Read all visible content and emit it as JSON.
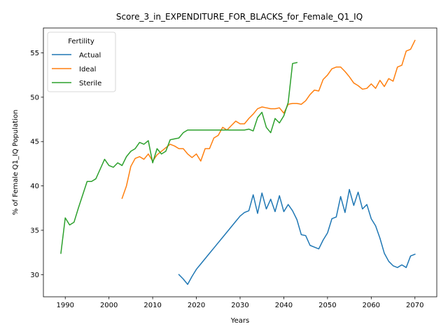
{
  "chart_data": {
    "type": "line",
    "title": "Score_3_in_EXPENDITURE_FOR_BLACKS_for_Female_Q1_IQ",
    "xlabel": "Years",
    "ylabel": "% of Female Q1_IQ Population",
    "xlim": [
      1985,
      2075
    ],
    "ylim": [
      27.5,
      57.8
    ],
    "xticks": [
      1990,
      2000,
      2010,
      2020,
      2030,
      2040,
      2050,
      2060,
      2070
    ],
    "yticks": [
      30,
      35,
      40,
      45,
      50,
      55
    ],
    "grid": false,
    "legend": {
      "title": "Fertility",
      "placement": "top-left"
    },
    "series": [
      {
        "name": "Actual",
        "color": "#1f77b4",
        "x": [
          2016,
          2017,
          2018,
          2019,
          2020,
          2021,
          2022,
          2023,
          2024,
          2025,
          2026,
          2027,
          2028,
          2029,
          2030,
          2031,
          2032,
          2033,
          2034,
          2035,
          2036,
          2037,
          2038,
          2039,
          2040,
          2041,
          2042,
          2043,
          2044,
          2045,
          2046,
          2047,
          2048,
          2049,
          2050,
          2051,
          2052,
          2053,
          2054,
          2055,
          2056,
          2057,
          2058,
          2059,
          2060,
          2061,
          2062,
          2063,
          2064,
          2065,
          2066,
          2067,
          2068,
          2069,
          2070
        ],
        "y": [
          30.0,
          29.5,
          28.9,
          29.8,
          30.6,
          31.2,
          31.8,
          32.4,
          33.0,
          33.6,
          34.2,
          34.8,
          35.4,
          36.0,
          36.6,
          37.0,
          37.2,
          39.0,
          36.9,
          39.2,
          37.4,
          38.5,
          37.1,
          38.9,
          37.1,
          37.9,
          37.2,
          36.2,
          34.5,
          34.4,
          33.3,
          33.1,
          32.9,
          33.9,
          34.7,
          36.3,
          36.5,
          38.8,
          37.0,
          39.6,
          37.8,
          39.3,
          37.4,
          37.9,
          36.3,
          35.5,
          34.1,
          32.4,
          31.5,
          31.0,
          30.8,
          31.1,
          30.8,
          32.1,
          32.3
        ]
      },
      {
        "name": "Ideal",
        "color": "#ff7f0e",
        "x": [
          2003,
          2004,
          2005,
          2006,
          2007,
          2008,
          2009,
          2010,
          2011,
          2012,
          2013,
          2014,
          2015,
          2016,
          2017,
          2018,
          2019,
          2020,
          2021,
          2022,
          2023,
          2024,
          2025,
          2026,
          2027,
          2028,
          2029,
          2030,
          2031,
          2032,
          2033,
          2034,
          2035,
          2036,
          2037,
          2038,
          2039,
          2040,
          2041,
          2042,
          2043,
          2044,
          2045,
          2046,
          2047,
          2048,
          2049,
          2050,
          2051,
          2052,
          2053,
          2054,
          2055,
          2056,
          2057,
          2058,
          2059,
          2060,
          2061,
          2062,
          2063,
          2064,
          2065,
          2066,
          2067,
          2068,
          2069,
          2070
        ],
        "y": [
          38.6,
          40.0,
          42.2,
          43.1,
          43.3,
          43.0,
          43.6,
          42.8,
          43.5,
          43.9,
          44.3,
          44.7,
          44.5,
          44.2,
          44.2,
          43.6,
          43.2,
          43.6,
          42.8,
          44.2,
          44.2,
          45.4,
          45.7,
          46.6,
          46.3,
          46.8,
          47.3,
          47.0,
          47.0,
          47.6,
          48.1,
          48.7,
          48.9,
          48.8,
          48.7,
          48.7,
          48.8,
          48.2,
          49.2,
          49.3,
          49.3,
          49.2,
          49.6,
          50.3,
          50.8,
          50.7,
          52.0,
          52.5,
          53.2,
          53.4,
          53.4,
          52.9,
          52.3,
          51.6,
          51.3,
          50.9,
          51.0,
          51.5,
          51.0,
          51.9,
          51.2,
          52.1,
          51.8,
          53.4,
          53.6,
          55.2,
          55.4,
          56.4
        ]
      },
      {
        "name": "Sterile",
        "color": "#2ca02c",
        "x": [
          1989,
          1990,
          1991,
          1992,
          1993,
          1994,
          1995,
          1996,
          1997,
          1998,
          1999,
          2000,
          2001,
          2002,
          2003,
          2004,
          2005,
          2006,
          2007,
          2008,
          2009,
          2010,
          2011,
          2012,
          2013,
          2014,
          2015,
          2016,
          2017,
          2018,
          2019,
          2020,
          2021,
          2022,
          2023,
          2024,
          2025,
          2026,
          2027,
          2028,
          2029,
          2030,
          2031,
          2032,
          2033,
          2034,
          2035,
          2036,
          2037,
          2038,
          2039,
          2040,
          2041,
          2042,
          2043
        ],
        "y": [
          32.4,
          36.4,
          35.6,
          35.9,
          37.5,
          39.0,
          40.5,
          40.5,
          40.8,
          41.9,
          43.0,
          42.3,
          42.1,
          42.6,
          42.3,
          43.3,
          43.9,
          44.2,
          44.9,
          44.7,
          45.1,
          42.6,
          44.2,
          43.6,
          43.9,
          45.2,
          45.3,
          45.4,
          46.0,
          46.3,
          46.3,
          46.3,
          46.3,
          46.3,
          46.3,
          46.3,
          46.3,
          46.3,
          46.3,
          46.3,
          46.3,
          46.3,
          46.3,
          46.4,
          46.2,
          47.7,
          48.3,
          46.6,
          46.0,
          47.6,
          47.1,
          47.9,
          49.4,
          53.8,
          53.9
        ]
      }
    ]
  }
}
